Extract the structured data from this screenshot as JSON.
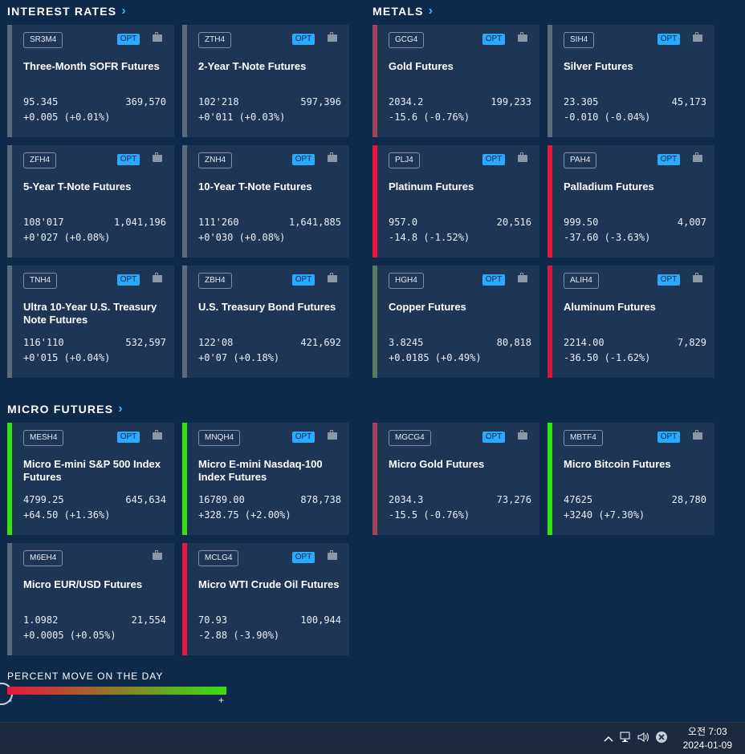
{
  "sections": {
    "interest_rates": "INTEREST RATES",
    "metals": "METALS",
    "micro_futures": "MICRO FUTURES"
  },
  "opt_label": "OPT",
  "chevron": "›",
  "interest_rates": [
    {
      "symbol": "SR3M4",
      "name": "Three-Month SOFR Futures",
      "price": "95.345",
      "volume": "369,570",
      "change": "+0.005 (+0.01%)",
      "opt": true,
      "color": "#5b6b7e"
    },
    {
      "symbol": "ZTH4",
      "name": "2-Year T-Note Futures",
      "price": "102'218",
      "volume": "597,396",
      "change": "+0'011 (+0.03%)",
      "opt": true,
      "color": "#5b6b7e"
    },
    {
      "symbol": "ZFH4",
      "name": "5-Year T-Note Futures",
      "price": "108'017",
      "volume": "1,041,196",
      "change": "+0'027 (+0.08%)",
      "opt": true,
      "color": "#5b6b7e"
    },
    {
      "symbol": "ZNH4",
      "name": "10-Year T-Note Futures",
      "price": "111'260",
      "volume": "1,641,885",
      "change": "+0'030 (+0.08%)",
      "opt": true,
      "color": "#5b6b7e"
    },
    {
      "symbol": "TNH4",
      "name": "Ultra 10-Year U.S. Treasury Note Futures",
      "price": "116'110",
      "volume": "532,597",
      "change": "+0'015 (+0.04%)",
      "opt": true,
      "color": "#5b6b7e"
    },
    {
      "symbol": "ZBH4",
      "name": "U.S. Treasury Bond Futures",
      "price": "122'08",
      "volume": "421,692",
      "change": "+0'07 (+0.18%)",
      "opt": true,
      "color": "#5b6b7e"
    }
  ],
  "metals": [
    {
      "symbol": "GCG4",
      "name": "Gold Futures",
      "price": "2034.2",
      "volume": "199,233",
      "change": "-15.6 (-0.76%)",
      "opt": true,
      "color": "#a0455d"
    },
    {
      "symbol": "SIH4",
      "name": "Silver Futures",
      "price": "23.305",
      "volume": "45,173",
      "change": "-0.010 (-0.04%)",
      "opt": true,
      "color": "#5b6b7e"
    },
    {
      "symbol": "PLJ4",
      "name": "Platinum Futures",
      "price": "957.0",
      "volume": "20,516",
      "change": "-14.8 (-1.52%)",
      "opt": true,
      "color": "#e8163d"
    },
    {
      "symbol": "PAH4",
      "name": "Palladium Futures",
      "price": "999.50",
      "volume": "4,007",
      "change": "-37.60 (-3.63%)",
      "opt": true,
      "color": "#e8163d"
    },
    {
      "symbol": "HGH4",
      "name": "Copper Futures",
      "price": "3.8245",
      "volume": "80,818",
      "change": "+0.0185 (+0.49%)",
      "opt": true,
      "color": "#5a7a64"
    },
    {
      "symbol": "ALIH4",
      "name": "Aluminum Futures",
      "price": "2214.00",
      "volume": "7,829",
      "change": "-36.50 (-1.62%)",
      "opt": true,
      "color": "#d01a3e"
    }
  ],
  "micro_left": [
    {
      "symbol": "MESH4",
      "name": "Micro E-mini S&P 500 Index Futures",
      "price": "4799.25",
      "volume": "645,634",
      "change": "+64.50 (+1.36%)",
      "opt": true,
      "color": "#35e015"
    },
    {
      "symbol": "MNQH4",
      "name": "Micro E-mini Nasdaq-100 Index Futures",
      "price": "16789.00",
      "volume": "878,738",
      "change": "+328.75 (+2.00%)",
      "opt": true,
      "color": "#35e015"
    },
    {
      "symbol": "M6EH4",
      "name": "Micro EUR/USD Futures",
      "price": "1.0982",
      "volume": "21,554",
      "change": "+0.0005 (+0.05%)",
      "opt": false,
      "color": "#5b6b7e"
    },
    {
      "symbol": "MCLG4",
      "name": "Micro WTI Crude Oil Futures",
      "price": "70.93",
      "volume": "100,944",
      "change": "-2.88 (-3.90%)",
      "opt": true,
      "color": "#e8163d"
    }
  ],
  "micro_right": [
    {
      "symbol": "MGCG4",
      "name": "Micro Gold Futures",
      "price": "2034.3",
      "volume": "73,276",
      "change": "-15.5 (-0.76%)",
      "opt": true,
      "color": "#a0455d"
    },
    {
      "symbol": "MBTF4",
      "name": "Micro Bitcoin Futures",
      "price": "47625",
      "volume": "28,780",
      "change": "+3240 (+7.30%)",
      "opt": true,
      "color": "#35e015"
    }
  ],
  "legend": {
    "title": "PERCENT MOVE ON THE DAY",
    "minus": "-",
    "plus": "+",
    "low_color": "#e8163d",
    "high_color": "#35e015"
  },
  "taskbar": {
    "time": "오전 7:03",
    "date": "2024-01-09",
    "tray_icons": [
      "chevron-up-icon",
      "network-icon",
      "speaker-icon",
      "close-circle-icon"
    ]
  }
}
